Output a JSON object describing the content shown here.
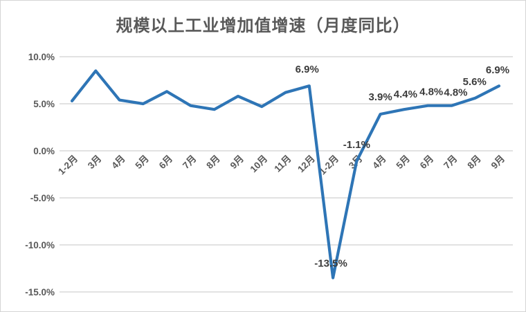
{
  "chart_data": {
    "type": "line",
    "title": "规模以上工业增加值增速（月度同比）",
    "legend": "none",
    "grid": "horizontal",
    "categories": [
      "1-2月",
      "3月",
      "4月",
      "5月",
      "6月",
      "7月",
      "8月",
      "9月",
      "10月",
      "11月",
      "12月",
      "1-2月",
      "3月",
      "4月",
      "5月",
      "6月",
      "7月",
      "8月",
      "9月"
    ],
    "values": [
      5.3,
      8.5,
      5.4,
      5.0,
      6.3,
      4.8,
      4.4,
      5.8,
      4.7,
      6.2,
      6.9,
      -13.5,
      -1.1,
      3.9,
      4.4,
      4.8,
      4.8,
      5.6,
      6.9
    ],
    "point_labels": [
      null,
      null,
      null,
      null,
      null,
      null,
      null,
      null,
      null,
      null,
      "6.9%",
      "-13.5%",
      "-1.1%",
      "3.9%",
      "4.4%",
      "4.8%",
      "4.8%",
      "5.6%",
      "6.9%"
    ],
    "y_ticks": [
      {
        "label": "10.0%",
        "value": 10
      },
      {
        "label": "5.0%",
        "value": 5
      },
      {
        "label": "0.0%",
        "value": 0
      },
      {
        "label": "-5.0%",
        "value": -5
      },
      {
        "label": "-10.0%",
        "value": -10
      },
      {
        "label": "-15.0%",
        "value": -15
      }
    ],
    "ylim": [
      -15,
      10
    ],
    "colors": {
      "line": "#2E75B6",
      "gridline": "#D9D9D9",
      "axis_text": "#595959",
      "data_label": "#3B3B3B",
      "title_text": "#595959",
      "border": "#D4D4D4"
    }
  }
}
